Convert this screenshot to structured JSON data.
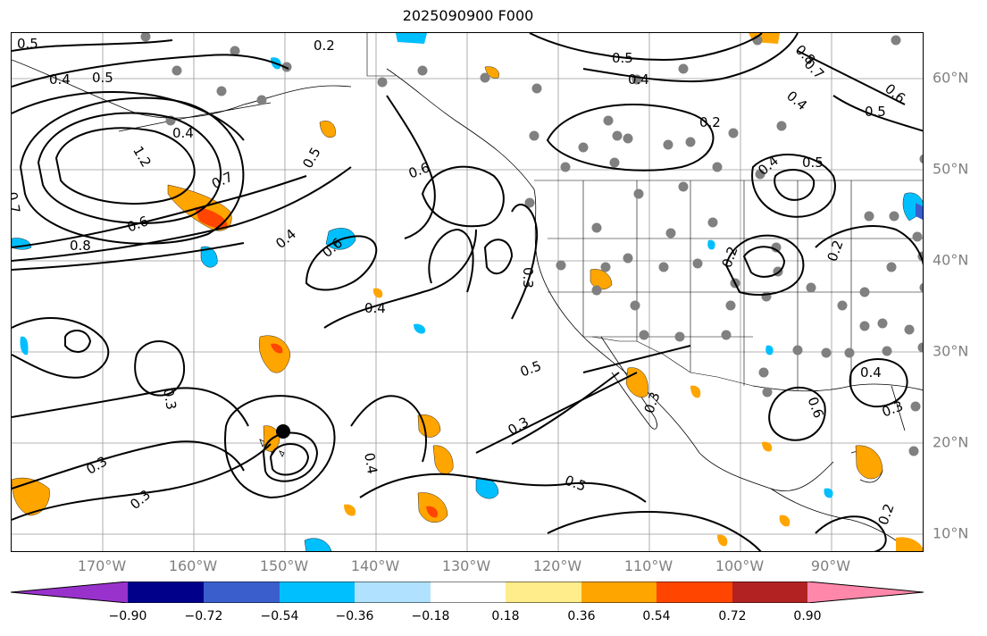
{
  "title": "2025090900 F000",
  "lon_labels": [
    "170°W",
    "160°W",
    "150°W",
    "140°W",
    "130°W",
    "120°W",
    "110°W",
    "100°W",
    "90°W"
  ],
  "lat_labels": [
    "60°N",
    "50°N",
    "40°N",
    "30°N",
    "20°N",
    "10°N"
  ],
  "colorbar": {
    "ticks": [
      "−0.90",
      "−0.72",
      "−0.54",
      "−0.36",
      "−0.18",
      "0.18",
      "0.36",
      "0.54",
      "0.72",
      "0.90"
    ],
    "colors": [
      "#9932cc",
      "#00008b",
      "#3a5fcd",
      "#00bfff",
      "#b0e2ff",
      "#ffffff",
      "#ffec8b",
      "#ffa500",
      "#ff4500",
      "#b22222",
      "#ff88aa"
    ]
  },
  "contour_labels": [
    "0.5",
    "0.2",
    "0.4",
    "0.5",
    "0.4",
    "0.5",
    "0.8",
    "0.7",
    "0.4",
    "0.6",
    "0.5",
    "0.2",
    "0.4",
    "1.2",
    "0.7",
    "0.8",
    "0.6",
    "0.7",
    "0.5",
    "0.6",
    "0.4",
    "0.6",
    "0.4",
    "0.5",
    "0.3",
    "0.5",
    "0.3",
    "0.2",
    "0.4",
    "0.5",
    "0.4",
    "0.3",
    "0.6",
    "0.3",
    "0.3",
    "0.3",
    "0.4",
    "0.3",
    "0.2",
    "0.2"
  ]
}
